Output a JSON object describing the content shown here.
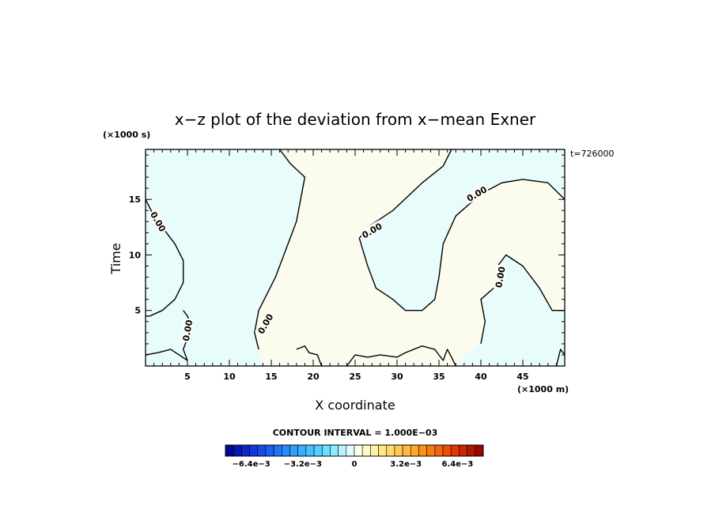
{
  "chart_data": {
    "type": "contour",
    "title": "x−z plot of the deviation from x−mean Exner",
    "xlabel": "X coordinate",
    "ylabel": "Time",
    "x_unit": "(×1000 m)",
    "y_unit": "(×1000 s)",
    "xlim": [
      0,
      50
    ],
    "ylim": [
      0,
      19.5
    ],
    "x_ticks": [
      5,
      10,
      15,
      20,
      25,
      30,
      35,
      40,
      45
    ],
    "y_ticks": [
      5,
      10,
      15
    ],
    "time_label": "t=726000",
    "contour_interval_label": "CONTOUR INTERVAL = 1.000E−03",
    "contour_levels": [
      0.0
    ],
    "contour_label_text": "0.00",
    "colorbar": {
      "min": -0.008,
      "max": 0.008,
      "tick_labels": [
        "−6.4e−3",
        "−3.2e−3",
        "0",
        "3.2e−3",
        "6.4e−3"
      ],
      "tick_values": [
        -0.0064,
        -0.0032,
        0,
        0.0032,
        0.0064
      ],
      "n_bins": 32
    },
    "fill_colors": {
      "negative": "#e8fcfc",
      "positive": "#fcfcee"
    },
    "regions": [
      {
        "sign": "negative",
        "desc": "left region x<~14",
        "polygon": [
          [
            0,
            0
          ],
          [
            0,
            19.5
          ],
          [
            16,
            19.5
          ],
          [
            17.3,
            18.2
          ],
          [
            19,
            17
          ],
          [
            18.5,
            15
          ],
          [
            18,
            13
          ],
          [
            16.5,
            10
          ],
          [
            15.5,
            8
          ],
          [
            14.5,
            6.5
          ],
          [
            13.5,
            5
          ],
          [
            13,
            3
          ],
          [
            13.5,
            1.5
          ],
          [
            14,
            0
          ]
        ]
      },
      {
        "sign": "negative",
        "desc": "upper-middle",
        "polygon": [
          [
            36.5,
            19.5
          ],
          [
            35.5,
            18
          ],
          [
            33,
            16.5
          ],
          [
            29.5,
            14
          ],
          [
            26.5,
            12.5
          ],
          [
            25.5,
            11.5
          ],
          [
            26.5,
            9
          ],
          [
            27.5,
            7
          ],
          [
            29.5,
            6
          ],
          [
            31,
            5
          ],
          [
            33,
            5
          ],
          [
            34.5,
            6
          ],
          [
            35,
            8
          ],
          [
            35.5,
            11
          ],
          [
            37,
            13.5
          ],
          [
            40,
            15.5
          ],
          [
            42.5,
            16.5
          ],
          [
            45,
            16.8
          ],
          [
            48,
            16.5
          ],
          [
            50,
            15
          ],
          [
            50,
            19.5
          ]
        ]
      },
      {
        "sign": "negative",
        "desc": "bottom-right",
        "polygon": [
          [
            37,
            0
          ],
          [
            38,
            1
          ],
          [
            40,
            2
          ],
          [
            40.5,
            4
          ],
          [
            40,
            6
          ],
          [
            41.5,
            7
          ],
          [
            42,
            9
          ],
          [
            43,
            10
          ],
          [
            45,
            9
          ],
          [
            47,
            7
          ],
          [
            48.5,
            5
          ],
          [
            50,
            5
          ],
          [
            50,
            0
          ]
        ]
      }
    ],
    "contours": [
      {
        "level": 0.0,
        "points": [
          [
            0,
            15
          ],
          [
            1,
            13.5
          ],
          [
            2.5,
            12
          ],
          [
            3.5,
            11
          ],
          [
            4.5,
            9.5
          ],
          [
            4.5,
            7.5
          ],
          [
            3.5,
            6
          ],
          [
            2,
            5
          ],
          [
            0.5,
            4.5
          ],
          [
            0,
            4.5
          ]
        ]
      },
      {
        "level": 0.0,
        "points": [
          [
            16,
            19.5
          ],
          [
            17.3,
            18.2
          ],
          [
            19,
            17
          ],
          [
            18.5,
            15
          ],
          [
            18,
            13
          ],
          [
            16.5,
            10
          ],
          [
            15.5,
            8
          ],
          [
            14.5,
            6.5
          ],
          [
            13.5,
            5
          ],
          [
            13,
            3
          ],
          [
            13.5,
            1.5
          ]
        ]
      },
      {
        "level": 0.0,
        "points": [
          [
            36.5,
            19.5
          ],
          [
            35.5,
            18
          ],
          [
            33,
            16.5
          ],
          [
            29.5,
            14
          ],
          [
            26.5,
            12.5
          ],
          [
            25.5,
            11.5
          ],
          [
            26.5,
            9
          ],
          [
            27.5,
            7
          ],
          [
            29.5,
            6
          ],
          [
            31,
            5
          ],
          [
            33,
            5
          ],
          [
            34.5,
            6
          ],
          [
            35,
            8
          ],
          [
            35.5,
            11
          ],
          [
            37,
            13.5
          ],
          [
            40,
            15.5
          ],
          [
            42.5,
            16.5
          ],
          [
            45,
            16.8
          ],
          [
            48,
            16.5
          ],
          [
            50,
            15
          ]
        ]
      },
      {
        "level": 0.0,
        "points": [
          [
            50,
            5
          ],
          [
            48.5,
            5
          ],
          [
            47,
            7
          ],
          [
            45,
            9
          ],
          [
            43,
            10
          ],
          [
            42,
            9
          ],
          [
            41.5,
            7
          ],
          [
            40,
            6
          ],
          [
            40.5,
            4
          ],
          [
            40,
            2
          ]
        ]
      },
      {
        "level": 0.0,
        "points": [
          [
            5,
            0.5
          ],
          [
            4.5,
            1.5
          ],
          [
            5,
            2.5
          ],
          [
            5.5,
            3.5
          ],
          [
            5,
            4.5
          ],
          [
            4.5,
            5
          ]
        ]
      },
      {
        "level": 0.0,
        "points": [
          [
            0,
            1
          ],
          [
            1.5,
            1.2
          ],
          [
            3,
            1.5
          ],
          [
            4,
            1
          ],
          [
            5,
            0.5
          ]
        ]
      },
      {
        "level": 0.0,
        "points": [
          [
            18,
            1.5
          ],
          [
            19,
            1.8
          ],
          [
            19.5,
            1.2
          ],
          [
            20.5,
            1
          ],
          [
            21,
            0
          ]
        ]
      },
      {
        "level": 0.0,
        "points": [
          [
            24,
            0
          ],
          [
            25,
            1
          ],
          [
            26.5,
            0.8
          ],
          [
            28,
            1
          ],
          [
            30,
            0.8
          ],
          [
            31,
            1.2
          ],
          [
            33,
            1.8
          ],
          [
            34.5,
            1.5
          ],
          [
            35.5,
            0.5
          ],
          [
            36,
            1.5
          ],
          [
            36.5,
            0.8
          ],
          [
            37,
            0
          ]
        ]
      },
      {
        "level": 0.0,
        "points": [
          [
            49,
            0
          ],
          [
            49.5,
            1.5
          ],
          [
            50,
            1
          ]
        ]
      }
    ],
    "contour_labels": [
      {
        "text": "0.00",
        "x": 1.5,
        "y": 13,
        "angle": 60
      },
      {
        "text": "0.00",
        "x": 5,
        "y": 3.2,
        "angle": -80
      },
      {
        "text": "0.00",
        "x": 14.3,
        "y": 3.8,
        "angle": -60
      },
      {
        "text": "0.00",
        "x": 27,
        "y": 12.2,
        "angle": -30
      },
      {
        "text": "0.00",
        "x": 39.5,
        "y": 15.5,
        "angle": -30
      },
      {
        "text": "0.00",
        "x": 42.3,
        "y": 8,
        "angle": -80
      }
    ]
  }
}
